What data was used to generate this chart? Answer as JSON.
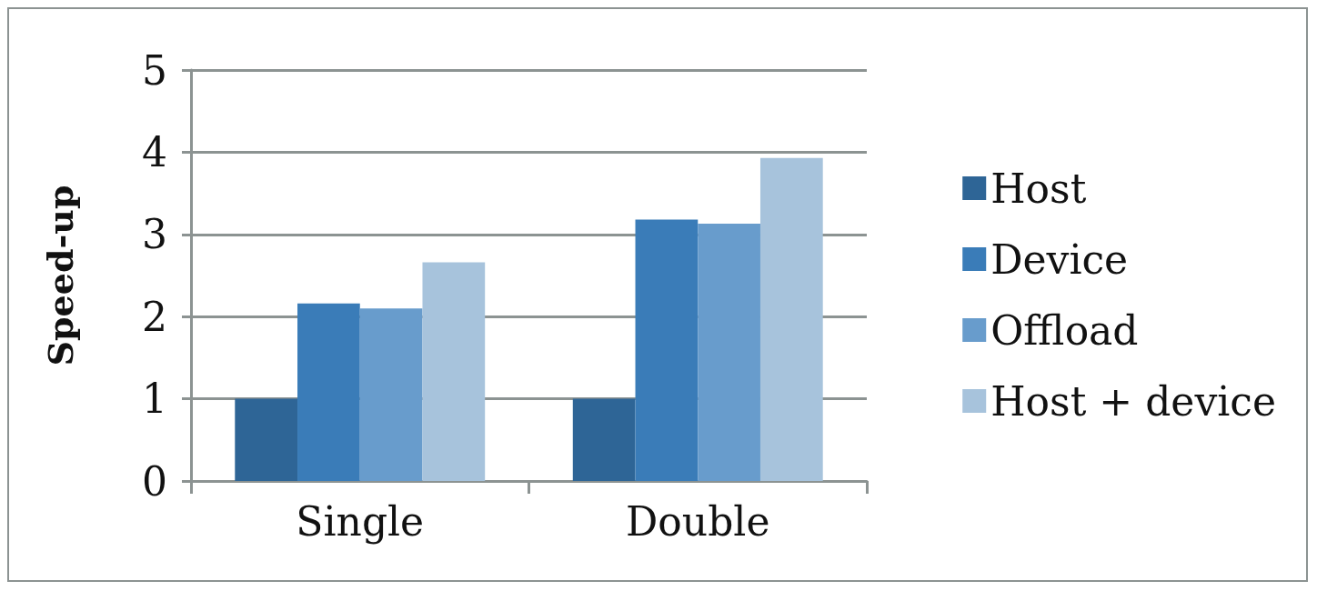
{
  "chart_data": {
    "type": "bar",
    "ylabel": "Speed-up",
    "categories": [
      "Single",
      "Double"
    ],
    "series": [
      {
        "name": "Host",
        "color": "#2e6596",
        "values": [
          1.0,
          1.0
        ]
      },
      {
        "name": "Device",
        "color": "#3a7cb8",
        "values": [
          2.16,
          3.18
        ]
      },
      {
        "name": "Offload",
        "color": "#689ccc",
        "values": [
          2.1,
          3.13
        ]
      },
      {
        "name": "Host + device",
        "color": "#a7c3dc",
        "values": [
          2.66,
          3.93
        ]
      }
    ],
    "ylim": [
      0,
      5
    ],
    "yticks": [
      0,
      1,
      2,
      3,
      4,
      5
    ],
    "grid": "y",
    "legend": "right"
  }
}
